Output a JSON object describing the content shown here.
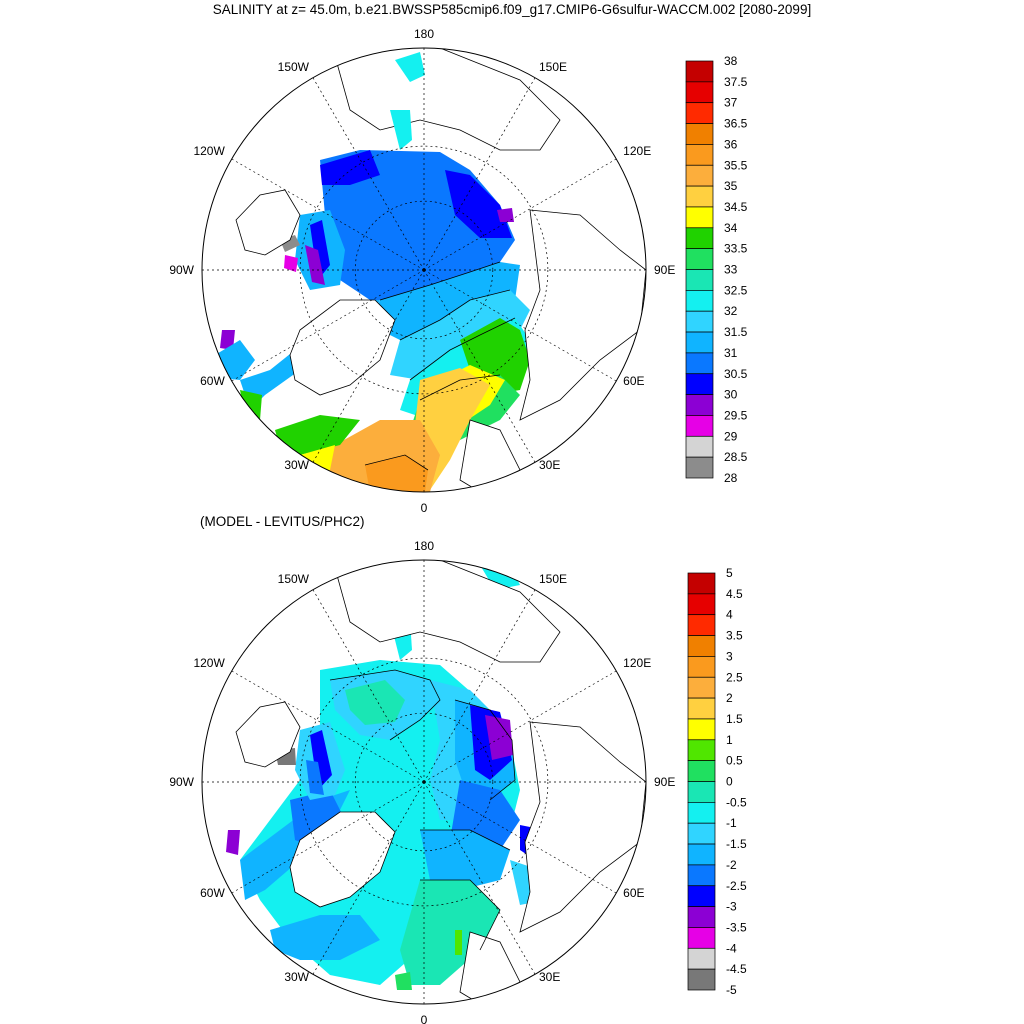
{
  "chart_data": [
    {
      "type": "polar_contour_map",
      "title": "SALINITY at z=  45.0m, b.e21.BWSSP585cmip6.f09_g17.CMIP6-G6sulfur-WACCM.002 [2080-2099]",
      "longitude_labels": [
        "180",
        "150E",
        "120E",
        "90E",
        "60E",
        "30E",
        "0",
        "30W",
        "60W",
        "90W",
        "120W",
        "150W"
      ],
      "colorbar": {
        "levels": [
          "38",
          "37.5",
          "37",
          "36.5",
          "36",
          "35.5",
          "35",
          "34.5",
          "34",
          "33.5",
          "33",
          "32.5",
          "32",
          "31.5",
          "31",
          "30.5",
          "30",
          "29.5",
          "29",
          "28.5",
          "28"
        ],
        "colors": [
          "#c40000",
          "#e60000",
          "#ff2a00",
          "#f08000",
          "#fa9a1e",
          "#fcae3c",
          "#ffd040",
          "#ffff00",
          "#20d200",
          "#20e060",
          "#1ae6b4",
          "#14f0f0",
          "#30d4ff",
          "#10b4ff",
          "#0a78ff",
          "#0000ff",
          "#8c00d4",
          "#e600e6",
          "#d4d4d4",
          "#8c8c8c"
        ]
      }
    },
    {
      "type": "polar_contour_map",
      "title": "(MODEL - LEVITUS/PHC2)",
      "longitude_labels": [
        "180",
        "150E",
        "120E",
        "90E",
        "60E",
        "30E",
        "0",
        "30W",
        "60W",
        "90W",
        "120W",
        "150W"
      ],
      "colorbar": {
        "levels": [
          "5",
          "4.5",
          "4",
          "3.5",
          "3",
          "2.5",
          "2",
          "1.5",
          "1",
          "0.5",
          "0",
          "-0.5",
          "-1",
          "-1.5",
          "-2",
          "-2.5",
          "-3",
          "-3.5",
          "-4",
          "-4.5",
          "-5"
        ],
        "colors": [
          "#c40000",
          "#e60000",
          "#ff2a00",
          "#f08000",
          "#fa9a1e",
          "#fcae3c",
          "#ffd040",
          "#ffff00",
          "#50e600",
          "#20e060",
          "#1ae6b4",
          "#14f0f0",
          "#30d4ff",
          "#10b4ff",
          "#0a78ff",
          "#0000ff",
          "#8c00d4",
          "#e600e6",
          "#d4d4d4",
          "#787878"
        ]
      }
    }
  ]
}
